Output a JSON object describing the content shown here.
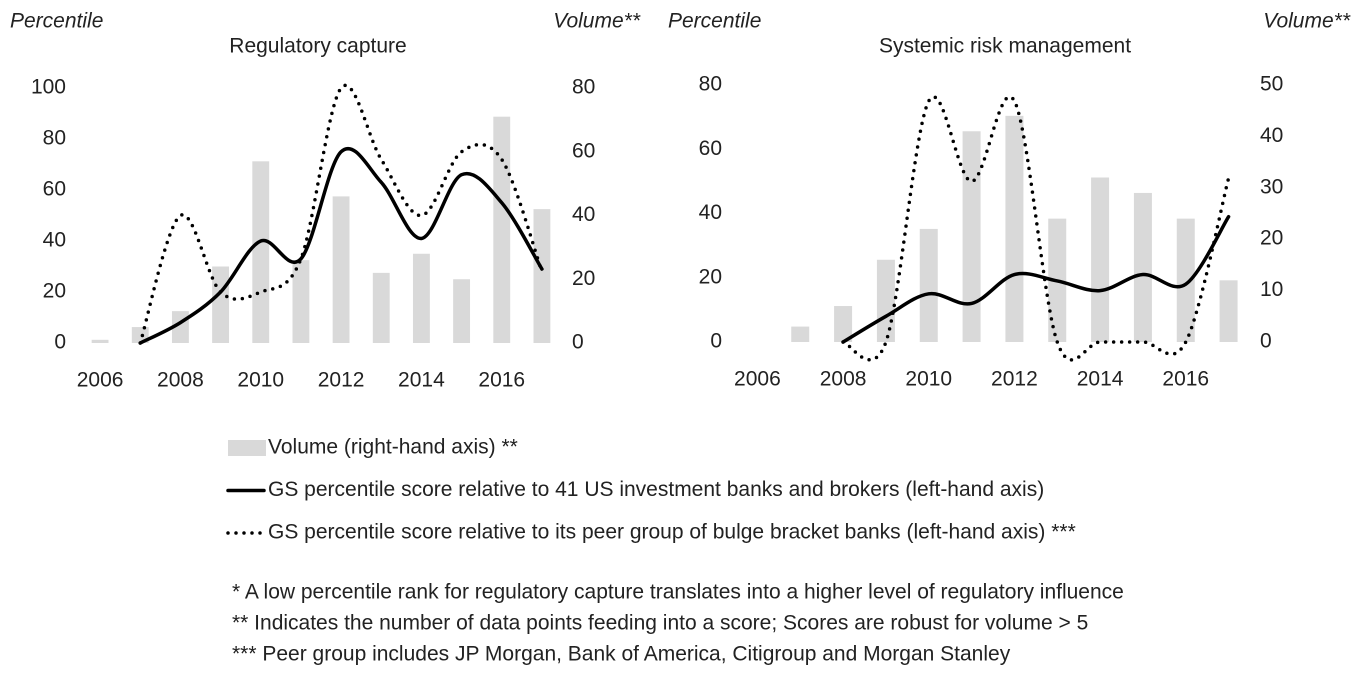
{
  "chart_data": [
    {
      "type": "combo",
      "title": "Regulatory capture",
      "ylabel": "Percentile",
      "y2label": "Volume**",
      "categories": [
        "2006",
        null,
        "2008",
        null,
        "2010",
        null,
        "2012",
        null,
        "2014",
        null,
        "2016",
        null
      ],
      "ylim": [
        0,
        100
      ],
      "yticks": [
        0,
        20,
        40,
        60,
        80,
        100
      ],
      "y2lim": [
        0,
        80
      ],
      "y2ticks": [
        0,
        20,
        40,
        60,
        80
      ],
      "series": [
        {
          "name": "Volume (right-hand axis) **",
          "type": "bar",
          "axis": "y2",
          "color": "#d9d9d9",
          "values": [
            1,
            5,
            10,
            24,
            57,
            26,
            46,
            22,
            28,
            20,
            71,
            42
          ]
        },
        {
          "name": "GS percentile score relative to 41 US investment banks and brokers (left-hand axis)",
          "type": "line",
          "color": "#000000",
          "dash": "solid",
          "values": [
            null,
            0,
            8,
            20,
            40,
            33,
            75,
            63,
            41,
            66,
            55,
            29
          ]
        },
        {
          "name": "GS percentile score relative to its peer group of bulge bracket banks (left-hand axis) ***",
          "type": "line",
          "color": "#000000",
          "dash": "dotted",
          "values": [
            null,
            0,
            50,
            20,
            20,
            33,
            100,
            72,
            50,
            75,
            72,
            28
          ]
        }
      ]
    },
    {
      "type": "combo",
      "title": "Systemic risk management",
      "ylabel": "Percentile",
      "y2label": "Volume**",
      "categories": [
        "2006",
        null,
        "2008",
        null,
        "2010",
        null,
        "2012",
        null,
        "2014",
        null,
        "2016",
        null
      ],
      "ylim": [
        0,
        80
      ],
      "yticks": [
        0,
        20,
        40,
        60,
        80
      ],
      "y2lim": [
        0,
        50
      ],
      "y2ticks": [
        0,
        10,
        20,
        30,
        40,
        50
      ],
      "series": [
        {
          "type": "bar",
          "axis": "y2",
          "color": "#d9d9d9",
          "values": [
            0,
            3,
            7,
            16,
            22,
            41,
            44,
            24,
            32,
            29,
            24,
            12
          ]
        },
        {
          "type": "line",
          "color": "#000000",
          "dash": "solid",
          "values": [
            null,
            null,
            0,
            8,
            15,
            12,
            21,
            19,
            16,
            21,
            18,
            39
          ]
        },
        {
          "type": "line",
          "color": "#000000",
          "dash": "dotted",
          "values": [
            null,
            null,
            0,
            0,
            75,
            50,
            75,
            0,
            0,
            0,
            0,
            51
          ]
        }
      ]
    }
  ],
  "notes": [
    "* A low percentile rank for regulatory capture translates into a higher level of regulatory influence",
    "** Indicates the number of data points feeding into a score; Scores are robust for volume > 5",
    "*** Peer group includes JP Morgan, Bank of America, Citigroup and Morgan Stanley"
  ]
}
